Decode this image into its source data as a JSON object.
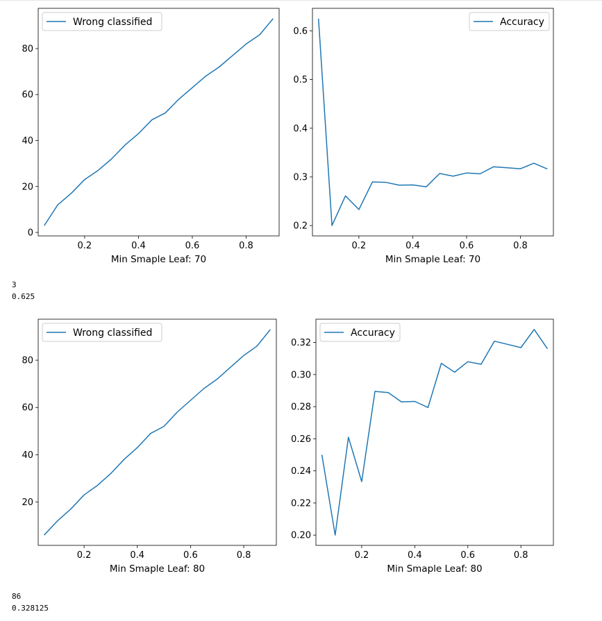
{
  "outputs": [
    {
      "lines": [
        "3",
        "0.625"
      ]
    },
    {
      "lines": [
        "86",
        "0.328125"
      ]
    }
  ],
  "style": {
    "line_color": "#1f77b4",
    "axis_color": "#000000"
  },
  "chart_data": [
    {
      "type": "line",
      "title": "",
      "xlabel": "Min Smaple Leaf: 70",
      "ylabel": "",
      "xlim": [
        0.0275,
        0.9225
      ],
      "ylim": [
        -1.5,
        97.5
      ],
      "xticks": [
        0.2,
        0.4,
        0.6,
        0.8
      ],
      "yticks": [
        0,
        20,
        40,
        60,
        80
      ],
      "xtick_labels": [
        "0.2",
        "0.4",
        "0.6",
        "0.8"
      ],
      "ytick_labels": [
        "0",
        "20",
        "40",
        "60",
        "80"
      ],
      "legend": {
        "position": "top-left"
      },
      "series": [
        {
          "name": "Wrong classified",
          "x": [
            0.05,
            0.1,
            0.15,
            0.2,
            0.25,
            0.3,
            0.35,
            0.4,
            0.45,
            0.5,
            0.55,
            0.6,
            0.65,
            0.7,
            0.75,
            0.8,
            0.85,
            0.9
          ],
          "y": [
            3,
            12,
            17,
            23,
            27,
            32,
            38,
            43,
            49,
            52,
            58,
            63,
            68,
            72,
            77,
            82,
            86,
            93
          ]
        }
      ]
    },
    {
      "type": "line",
      "title": "",
      "xlabel": "Min Smaple Leaf: 70",
      "ylabel": "",
      "xlim": [
        0.0275,
        0.9225
      ],
      "ylim": [
        0.1788,
        0.6462
      ],
      "xticks": [
        0.2,
        0.4,
        0.6,
        0.8
      ],
      "yticks": [
        0.2,
        0.3,
        0.4,
        0.5,
        0.6
      ],
      "xtick_labels": [
        "0.2",
        "0.4",
        "0.6",
        "0.8"
      ],
      "ytick_labels": [
        "0.2",
        "0.3",
        "0.4",
        "0.5",
        "0.6"
      ],
      "legend": {
        "position": "top-right"
      },
      "series": [
        {
          "name": "Accuracy",
          "x": [
            0.05,
            0.1,
            0.15,
            0.2,
            0.25,
            0.3,
            0.35,
            0.4,
            0.45,
            0.5,
            0.55,
            0.6,
            0.65,
            0.7,
            0.75,
            0.8,
            0.85,
            0.9
          ],
          "y": [
            0.625,
            0.2,
            0.261,
            0.233,
            0.2895,
            0.2888,
            0.283,
            0.2835,
            0.2795,
            0.307,
            0.3015,
            0.308,
            0.3064,
            0.3208,
            0.3188,
            0.3168,
            0.3281,
            0.3161
          ]
        }
      ]
    },
    {
      "type": "line",
      "title": "",
      "xlabel": "Min Smaple Leaf: 80",
      "ylabel": "",
      "xlim": [
        0.0275,
        0.9225
      ],
      "ylim": [
        1.65,
        97.35
      ],
      "xticks": [
        0.2,
        0.4,
        0.6,
        0.8
      ],
      "yticks": [
        20,
        40,
        60,
        80
      ],
      "xtick_labels": [
        "0.2",
        "0.4",
        "0.6",
        "0.8"
      ],
      "ytick_labels": [
        "20",
        "40",
        "60",
        "80"
      ],
      "legend": {
        "position": "top-left"
      },
      "series": [
        {
          "name": "Wrong classified",
          "x": [
            0.05,
            0.1,
            0.15,
            0.2,
            0.25,
            0.3,
            0.35,
            0.4,
            0.45,
            0.5,
            0.55,
            0.6,
            0.65,
            0.7,
            0.75,
            0.8,
            0.85,
            0.9
          ],
          "y": [
            6,
            12,
            17,
            23,
            27,
            32,
            38,
            43,
            49,
            52,
            58,
            63,
            68,
            72,
            77,
            82,
            86,
            93
          ]
        }
      ]
    },
    {
      "type": "line",
      "title": "",
      "xlabel": "Min Smaple Leaf: 80",
      "ylabel": "",
      "xlim": [
        0.0275,
        0.9225
      ],
      "ylim": [
        0.1936,
        0.3345
      ],
      "xticks": [
        0.2,
        0.4,
        0.6,
        0.8
      ],
      "yticks": [
        0.2,
        0.22,
        0.24,
        0.26,
        0.28,
        0.3,
        0.32
      ],
      "xtick_labels": [
        "0.2",
        "0.4",
        "0.6",
        "0.8"
      ],
      "ytick_labels": [
        "0.20",
        "0.22",
        "0.24",
        "0.26",
        "0.28",
        "0.30",
        "0.32"
      ],
      "legend": {
        "position": "top-left"
      },
      "series": [
        {
          "name": "Accuracy",
          "x": [
            0.05,
            0.1,
            0.15,
            0.2,
            0.25,
            0.3,
            0.35,
            0.4,
            0.45,
            0.5,
            0.55,
            0.6,
            0.65,
            0.7,
            0.75,
            0.8,
            0.85,
            0.9
          ],
          "y": [
            0.25,
            0.2,
            0.261,
            0.2333,
            0.2895,
            0.2888,
            0.283,
            0.2833,
            0.2795,
            0.307,
            0.3015,
            0.308,
            0.3064,
            0.3208,
            0.3188,
            0.3168,
            0.3281,
            0.3161
          ]
        }
      ]
    }
  ]
}
